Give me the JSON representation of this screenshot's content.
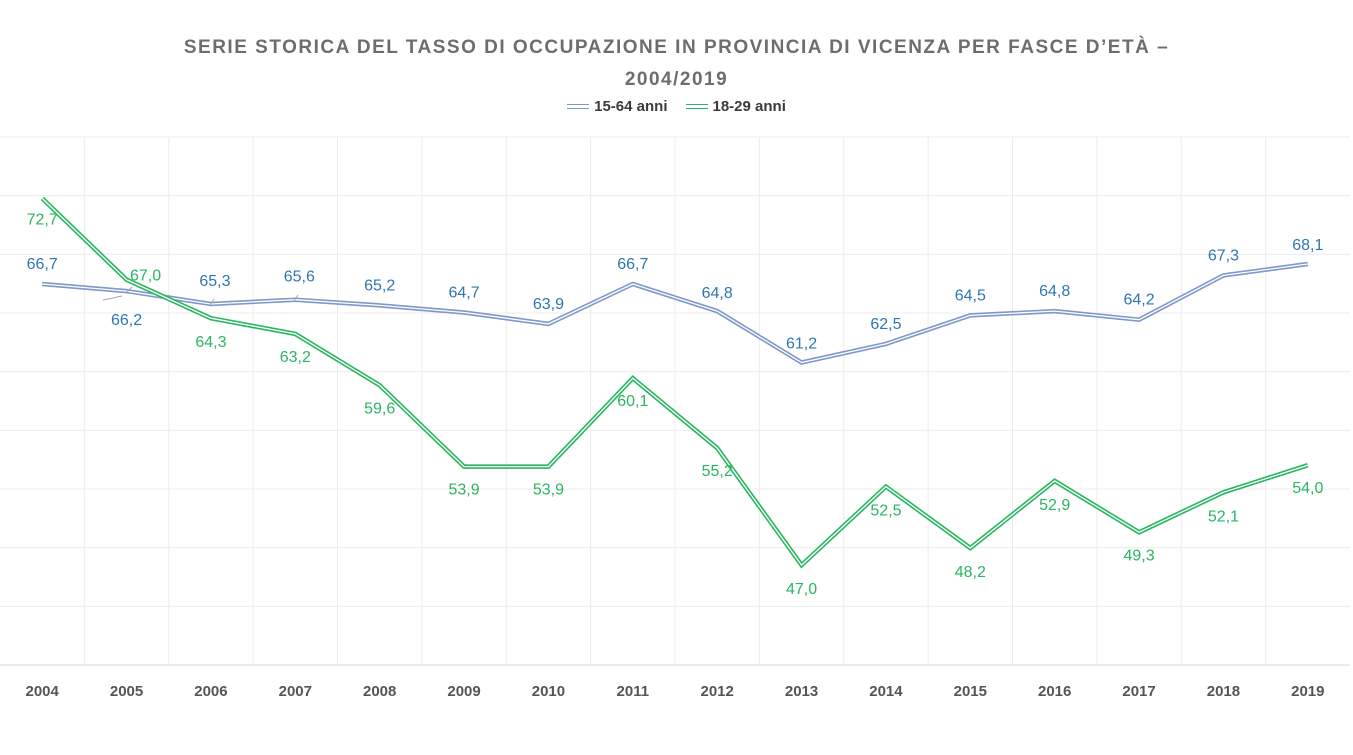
{
  "chart_data": {
    "type": "line",
    "title": "SERIE STORICA DEL TASSO DI OCCUPAZIONE IN PROVINCIA DI VICENZA PER FASCE D’ETÀ – 2004/2019",
    "title_lines": [
      "SERIE STORICA DEL TASSO DI OCCUPAZIONE IN PROVINCIA DI VICENZA PER FASCE D’ETÀ –",
      "2004/2019"
    ],
    "x": [
      "2004",
      "2005",
      "2006",
      "2007",
      "2008",
      "2009",
      "2010",
      "2011",
      "2012",
      "2013",
      "2014",
      "2015",
      "2016",
      "2017",
      "2018",
      "2019"
    ],
    "ylim": [
      40,
      77
    ],
    "grid": true,
    "legend_position": "top",
    "series": [
      {
        "name": "15-64 anni",
        "color": "#7f97c9",
        "label_color": "#2e75b6",
        "values": [
          66.7,
          66.2,
          65.3,
          65.6,
          65.2,
          64.7,
          63.9,
          66.7,
          64.8,
          61.2,
          62.5,
          64.5,
          64.8,
          64.2,
          67.3,
          68.1
        ],
        "labels": [
          "66,7",
          "66,2",
          "65,3",
          "65,6",
          "65,2",
          "64,7",
          "63,9",
          "66,7",
          "64,8",
          "61,2",
          "62,5",
          "64,5",
          "64,8",
          "64,2",
          "67,3",
          "68,1"
        ]
      },
      {
        "name": "18-29 anni",
        "color": "#2ab561",
        "label_color": "#2ab561",
        "values": [
          72.7,
          67.0,
          64.3,
          63.2,
          59.6,
          53.9,
          53.9,
          60.1,
          55.2,
          47.0,
          52.5,
          48.2,
          52.9,
          49.3,
          52.1,
          54.0
        ],
        "labels": [
          "72,7",
          "67,0",
          "64,3",
          "63,2",
          "59,6",
          "53,9",
          "53,9",
          "60,1",
          "55,2",
          "47,0",
          "52,5",
          "48,2",
          "52,9",
          "49,3",
          "52,1",
          "54,0"
        ]
      }
    ]
  }
}
